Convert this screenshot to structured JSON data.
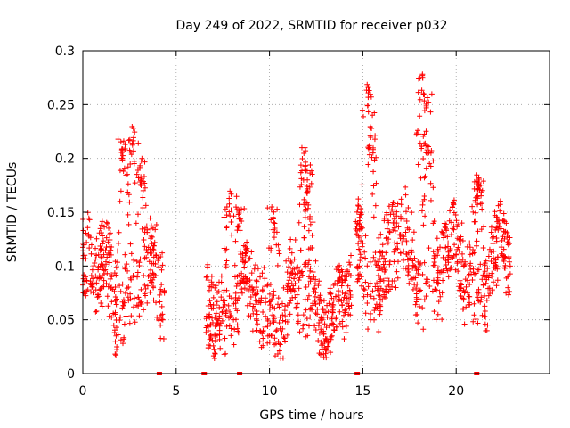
{
  "chart_data": {
    "type": "scatter",
    "title": "Day 249 of 2022, SRMTID for receiver p032",
    "xlabel": "GPS time / hours",
    "ylabel": "SRMTID / TECUs",
    "xlim": [
      0,
      25
    ],
    "ylim": [
      0,
      0.3
    ],
    "xticks": [
      0,
      5,
      10,
      15,
      20
    ],
    "xtick_labels": [
      "0",
      "5",
      "10",
      "15",
      "20"
    ],
    "yticks": [
      0,
      0.05,
      0.1,
      0.15,
      0.2,
      0.25,
      0.3
    ],
    "ytick_labels": [
      "0",
      "0.05",
      "0.1",
      "0.15",
      "0.2",
      "0.25",
      "0.3"
    ],
    "grid": true,
    "marker": "+",
    "color": "#ff0000",
    "series": [
      {
        "name": "SRMTID",
        "segments": [
          {
            "x_start": 0.0,
            "x_end": 4.4,
            "base": 0.085,
            "spread": 0.045,
            "peaks": [
              [
                2.2,
                0.22
              ],
              [
                2.7,
                0.235
              ],
              [
                3.1,
                0.2
              ],
              [
                0.3,
                0.15
              ]
            ]
          },
          {
            "x_start": 6.6,
            "x_end": 14.4,
            "base": 0.065,
            "spread": 0.04,
            "peaks": [
              [
                8.3,
                0.155
              ],
              [
                10.2,
                0.155
              ],
              [
                11.9,
                0.21
              ],
              [
                12.0,
                0.19
              ],
              [
                7.9,
                0.17
              ]
            ]
          },
          {
            "x_start": 14.6,
            "x_end": 22.9,
            "base": 0.1,
            "spread": 0.045,
            "peaks": [
              [
                15.3,
                0.27
              ],
              [
                15.4,
                0.23
              ],
              [
                18.2,
                0.285
              ],
              [
                18.4,
                0.27
              ],
              [
                18.5,
                0.22
              ],
              [
                21.2,
                0.185
              ],
              [
                16.6,
                0.16
              ]
            ]
          }
        ]
      }
    ],
    "zero_markers_x": [
      4.1,
      6.5,
      8.4,
      14.7,
      21.1
    ]
  }
}
